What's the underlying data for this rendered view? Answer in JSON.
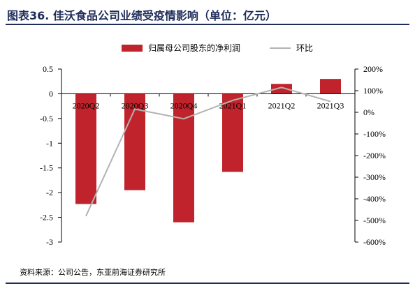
{
  "title": "图表36. 佳沃食品公司业绩受疫情影响（单位：亿元）",
  "source": "资料来源：公司公告，东亚前海证券研究所",
  "chart_data": {
    "type": "bar+line",
    "categories": [
      "2020Q2",
      "2020Q3",
      "2020Q4",
      "2021Q1",
      "2021Q2",
      "2021Q3"
    ],
    "series": [
      {
        "name": "归属母公司股东的净利润",
        "type": "bar",
        "axis": "left",
        "color": "#c0232c",
        "values": [
          -2.23,
          -1.95,
          -2.6,
          -1.58,
          0.2,
          0.3
        ]
      },
      {
        "name": "环比",
        "type": "line",
        "axis": "right",
        "color": "#b3b3b3",
        "values": [
          -480,
          15,
          -30,
          55,
          115,
          50
        ]
      }
    ],
    "left_axis": {
      "ylim": [
        -3,
        0.5
      ],
      "ticks": [
        0.5,
        0,
        -0.5,
        -1,
        -1.5,
        -2,
        -2.5,
        -3
      ]
    },
    "right_axis": {
      "ylim": [
        -600,
        200
      ],
      "ticks": [
        "200%",
        "100%",
        "0%",
        "-100%",
        "-200%",
        "-300%",
        "-400%",
        "-500%",
        "-600%"
      ]
    },
    "legend_position": "top"
  }
}
